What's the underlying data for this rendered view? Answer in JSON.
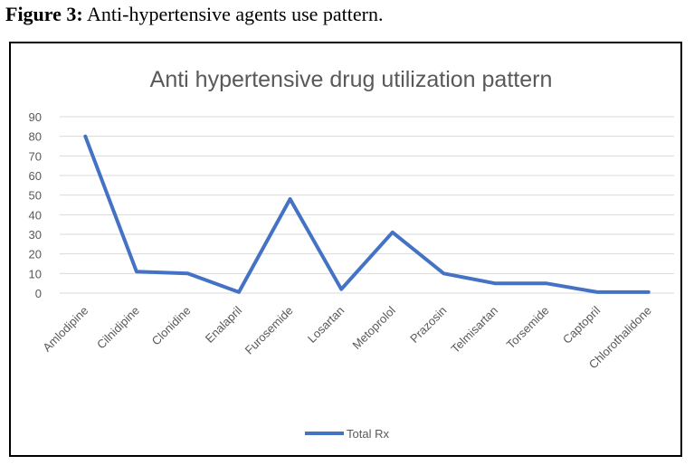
{
  "caption": {
    "label": "Figure 3:",
    "text": " Anti-hypertensive agents use pattern."
  },
  "colors": {
    "line": "#4472C4",
    "grid": "#D9D9D9",
    "text": "#595959"
  },
  "chart_data": {
    "type": "line",
    "title": "Anti hypertensive drug utilization pattern",
    "xlabel": "",
    "ylabel": "",
    "ylim": [
      0,
      90
    ],
    "yticks": [
      0,
      10,
      20,
      30,
      40,
      50,
      60,
      70,
      80,
      90
    ],
    "grid": true,
    "legend_position": "bottom",
    "categories": [
      "Amlodipine",
      "Cilnidipine",
      "Clonidine",
      "Enalapril",
      "Furosemide",
      "Losartan",
      "Metoprolol",
      "Prazosin",
      "Telmisartan",
      "Torsemide",
      "Captopril",
      "Chlorothalidone"
    ],
    "series": [
      {
        "name": "Total Rx",
        "values": [
          80,
          11,
          10,
          0.5,
          48,
          2,
          31,
          10,
          5,
          5,
          0.5,
          0.5
        ]
      }
    ]
  }
}
